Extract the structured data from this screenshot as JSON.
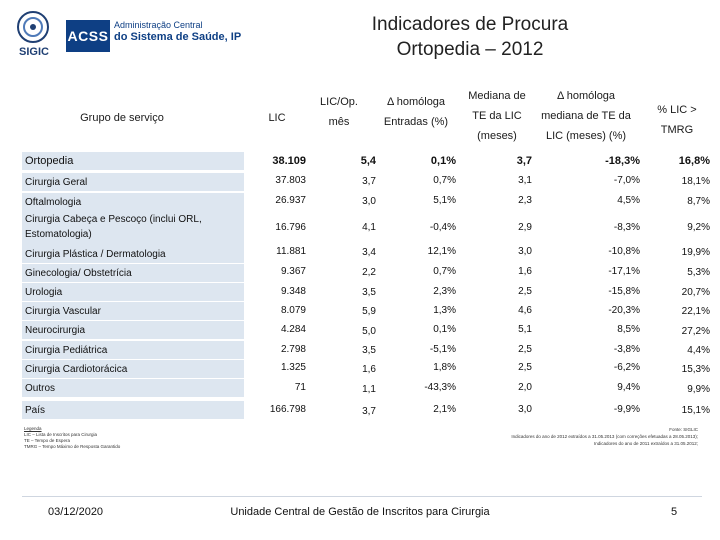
{
  "logos": {
    "sigic_label": "SIGIC",
    "acss_abbrev": "ACSS",
    "acss_line1": "Administração Central",
    "acss_line2": "do Sistema de Saúde, IP"
  },
  "title": {
    "line1": "Indicadores de Procura",
    "line2": "Ortopedia – 2012"
  },
  "table": {
    "headers": {
      "group": "Grupo de serviço",
      "lic": "LIC",
      "licop_1": "LIC/Op.",
      "licop_2": "mês",
      "dhom_1": "Δ homóloga",
      "dhom_2": "Entradas (%)",
      "mediana_1": "Mediana de",
      "mediana_2": "TE da LIC",
      "mediana_3": "(meses)",
      "dmed_1": "Δ homóloga",
      "dmed_2": "mediana de TE da",
      "dmed_3": "LIC (meses) (%)",
      "tmrg_1": "% LIC >",
      "tmrg_2": "TMRG"
    },
    "rows": [
      {
        "group": "Ortopedia",
        "lic": "38.109",
        "licop": "5,4",
        "dhom": "0,1%",
        "mediana": "3,7",
        "dmed": "-18,3%",
        "tmrg": "16,8%"
      },
      {
        "group": "Cirurgia Geral",
        "lic": "37.803",
        "licop": "3,7",
        "dhom": "0,7%",
        "mediana": "3,1",
        "dmed": "-7,0%",
        "tmrg": "18,1%"
      },
      {
        "group": "Oftalmologia",
        "lic": "26.937",
        "licop": "3,0",
        "dhom": "5,1%",
        "mediana": "2,3",
        "dmed": "4,5%",
        "tmrg": "8,7%"
      },
      {
        "group": "Cirurgia Cabeça e Pescoço (inclui ORL, Estomatologia)",
        "lic": "16.796",
        "licop": "4,1",
        "dhom": "-0,4%",
        "mediana": "2,9",
        "dmed": "-8,3%",
        "tmrg": "9,2%"
      },
      {
        "group": "Cirurgia Plástica / Dermatologia",
        "lic": "11.881",
        "licop": "3,4",
        "dhom": "12,1%",
        "mediana": "3,0",
        "dmed": "-10,8%",
        "tmrg": "19,9%"
      },
      {
        "group": "Ginecologia/ Obstetrícia",
        "lic": "9.367",
        "licop": "2,2",
        "dhom": "0,7%",
        "mediana": "1,6",
        "dmed": "-17,1%",
        "tmrg": "5,3%"
      },
      {
        "group": "Urologia",
        "lic": "9.348",
        "licop": "3,5",
        "dhom": "2,3%",
        "mediana": "2,5",
        "dmed": "-15,8%",
        "tmrg": "20,7%"
      },
      {
        "group": "Cirurgia Vascular",
        "lic": "8.079",
        "licop": "5,9",
        "dhom": "1,3%",
        "mediana": "4,6",
        "dmed": "-20,3%",
        "tmrg": "22,1%"
      },
      {
        "group": "Neurocirurgia",
        "lic": "4.284",
        "licop": "5,0",
        "dhom": "0,1%",
        "mediana": "5,1",
        "dmed": "8,5%",
        "tmrg": "27,2%"
      },
      {
        "group": "Cirurgia Pediátrica",
        "lic": "2.798",
        "licop": "3,5",
        "dhom": "-5,1%",
        "mediana": "2,5",
        "dmed": "-3,8%",
        "tmrg": "4,4%"
      },
      {
        "group": "Cirurgia Cardiotorácica",
        "lic": "1.325",
        "licop": "1,6",
        "dhom": "1,8%",
        "mediana": "2,5",
        "dmed": "-6,2%",
        "tmrg": "15,3%"
      },
      {
        "group": "Outros",
        "lic": "71",
        "licop": "1,1",
        "dhom": "-43,3%",
        "mediana": "2,0",
        "dmed": "9,4%",
        "tmrg": "9,9%"
      },
      {
        "group": "País",
        "lic": "166.798",
        "licop": "3,7",
        "dhom": "2,1%",
        "mediana": "3,0",
        "dmed": "-9,9%",
        "tmrg": "15,1%"
      }
    ]
  },
  "legend": {
    "title": "Legenda",
    "l1": "LIC – Lista de Inscritos para Cirurgia",
    "l2": "TE – Tempo de Espera",
    "l3": "TMRG – Tempo Máximo de Resposta Garantido"
  },
  "source": {
    "l1": "Fonte: SIGLIC",
    "l2": "Indicadores do ano de 2012 extraídos a 31.05.2013 (com correções efetuadas a 28.05.2013);",
    "l3": "Indicadores do ano de 2011 extraídos a 31.05.2012;"
  },
  "footer": {
    "date": "03/12/2020",
    "center": "Unidade Central de Gestão de Inscritos para Cirurgia",
    "page": "5"
  }
}
